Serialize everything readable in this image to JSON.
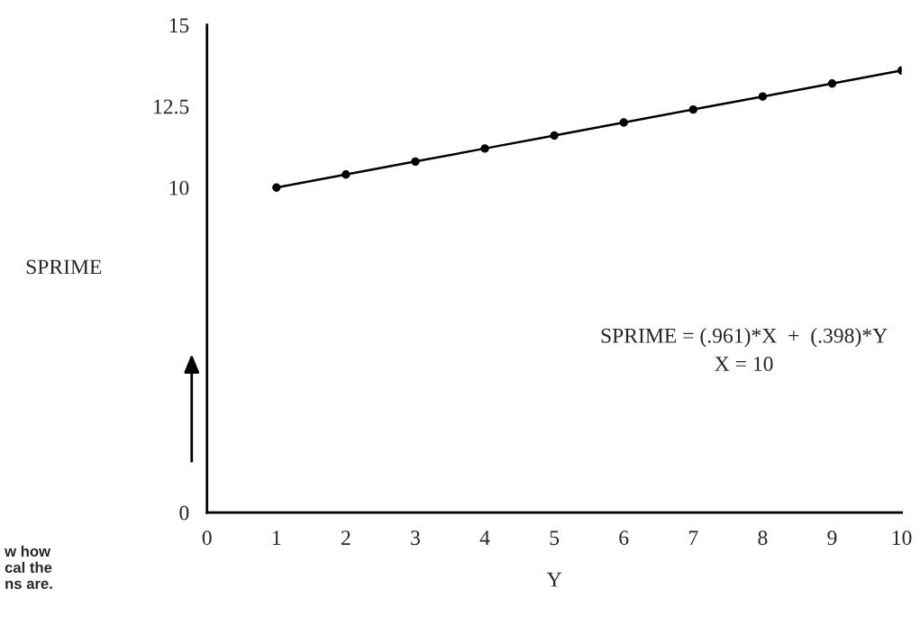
{
  "chart_data": {
    "type": "line",
    "x": [
      1,
      2,
      3,
      4,
      5,
      6,
      7,
      8,
      9,
      10
    ],
    "series": [
      {
        "color": "#000000",
        "values": [
          10.0,
          10.4,
          10.8,
          11.2,
          11.6,
          12.0,
          12.4,
          12.8,
          13.2,
          13.6
        ]
      }
    ],
    "xlabel": "Y",
    "ylabel": "SPRIME",
    "xlim": [
      0,
      10
    ],
    "xticks": [
      0,
      1,
      2,
      3,
      4,
      5,
      6,
      7,
      8,
      9,
      10
    ],
    "ylim": [
      0,
      15
    ],
    "yticks": [
      0,
      10,
      12.5,
      15
    ],
    "marker": "circle",
    "line_style": "solid",
    "grid": false,
    "legend": false,
    "annotations": [
      "SPRIME = (.961)*X  +  (.398)*Y\nX = 10",
      "w how\ncal the\nns are."
    ]
  }
}
